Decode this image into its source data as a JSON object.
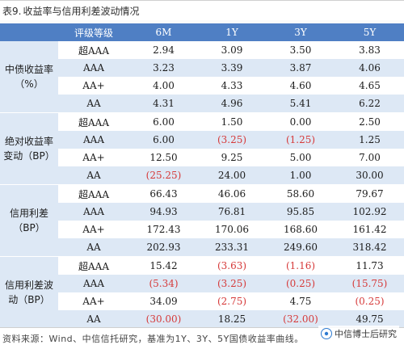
{
  "title": {
    "prefix": "表9.",
    "text": "收益率与信用利差波动情况"
  },
  "table": {
    "header": {
      "rating_label": "评级等级",
      "columns": [
        "6M",
        "1Y",
        "3Y",
        "5Y"
      ]
    },
    "groups": [
      {
        "category": "中债收益率（%）",
        "rows": [
          {
            "rating": "超AAA",
            "cells": [
              {
                "v": "2.94"
              },
              {
                "v": "3.09"
              },
              {
                "v": "3.50"
              },
              {
                "v": "3.83"
              }
            ]
          },
          {
            "rating": "AAA",
            "cells": [
              {
                "v": "3.23"
              },
              {
                "v": "3.39"
              },
              {
                "v": "3.87"
              },
              {
                "v": "4.06"
              }
            ]
          },
          {
            "rating": "AA+",
            "cells": [
              {
                "v": "4.00"
              },
              {
                "v": "4.33"
              },
              {
                "v": "4.60"
              },
              {
                "v": "4.65"
              }
            ]
          },
          {
            "rating": "AA",
            "cells": [
              {
                "v": "4.31"
              },
              {
                "v": "4.96"
              },
              {
                "v": "5.41"
              },
              {
                "v": "6.22"
              }
            ]
          }
        ]
      },
      {
        "category": "绝对收益率变动（BP）",
        "rows": [
          {
            "rating": "超AAA",
            "cells": [
              {
                "v": "6.00"
              },
              {
                "v": "1.50"
              },
              {
                "v": "0.00"
              },
              {
                "v": "2.50"
              }
            ]
          },
          {
            "rating": "AAA",
            "cells": [
              {
                "v": "6.00"
              },
              {
                "v": "(3.25)",
                "neg": true
              },
              {
                "v": "(1.25)",
                "neg": true
              },
              {
                "v": "1.25"
              }
            ]
          },
          {
            "rating": "AA+",
            "cells": [
              {
                "v": "12.50"
              },
              {
                "v": "9.25"
              },
              {
                "v": "5.00"
              },
              {
                "v": "7.00"
              }
            ]
          },
          {
            "rating": "AA",
            "cells": [
              {
                "v": "(25.25)",
                "neg": true
              },
              {
                "v": "24.00"
              },
              {
                "v": "1.00"
              },
              {
                "v": "30.00"
              }
            ]
          }
        ]
      },
      {
        "category": "信用利差（BP）",
        "rows": [
          {
            "rating": "超AAA",
            "cells": [
              {
                "v": "66.43"
              },
              {
                "v": "46.06"
              },
              {
                "v": "58.60"
              },
              {
                "v": "79.67"
              }
            ]
          },
          {
            "rating": "AAA",
            "cells": [
              {
                "v": "94.93"
              },
              {
                "v": "76.81"
              },
              {
                "v": "95.85"
              },
              {
                "v": "102.92"
              }
            ]
          },
          {
            "rating": "AA+",
            "cells": [
              {
                "v": "172.43"
              },
              {
                "v": "170.06"
              },
              {
                "v": "168.60"
              },
              {
                "v": "161.42"
              }
            ]
          },
          {
            "rating": "AA",
            "cells": [
              {
                "v": "202.93"
              },
              {
                "v": "233.31"
              },
              {
                "v": "249.60"
              },
              {
                "v": "318.42"
              }
            ]
          }
        ]
      },
      {
        "category": "信用利差波动（BP）",
        "rows": [
          {
            "rating": "超AAA",
            "cells": [
              {
                "v": "15.42"
              },
              {
                "v": "(3.63)",
                "neg": true
              },
              {
                "v": "(1.16)",
                "neg": true
              },
              {
                "v": "11.73"
              }
            ]
          },
          {
            "rating": "AAA",
            "cells": [
              {
                "v": "(5.34)",
                "neg": true
              },
              {
                "v": "(3.25)",
                "neg": true
              },
              {
                "v": "(0.25)",
                "neg": true
              },
              {
                "v": "(15.75)",
                "neg": true
              }
            ]
          },
          {
            "rating": "AA+",
            "cells": [
              {
                "v": "34.09"
              },
              {
                "v": "(2.75)",
                "neg": true
              },
              {
                "v": "4.75"
              },
              {
                "v": "(0.25)",
                "neg": true
              }
            ]
          },
          {
            "rating": "AA",
            "cells": [
              {
                "v": "(30.00)",
                "neg": true
              },
              {
                "v": "18.25"
              },
              {
                "v": "(32.00)",
                "neg": true
              },
              {
                "v": "49.75"
              }
            ]
          }
        ]
      }
    ]
  },
  "footer": {
    "source": "资料来源：Wind、中信信托研究，基准为1Y、3Y、5Y国债收益率曲线。"
  },
  "watermark": {
    "text": "中信博士后研究",
    "icon": "weibo-style-logo-icon"
  },
  "colors": {
    "header_bg": "#4f7fc4",
    "band_bg": "#dde8f5",
    "negative": "#d63a3a"
  }
}
